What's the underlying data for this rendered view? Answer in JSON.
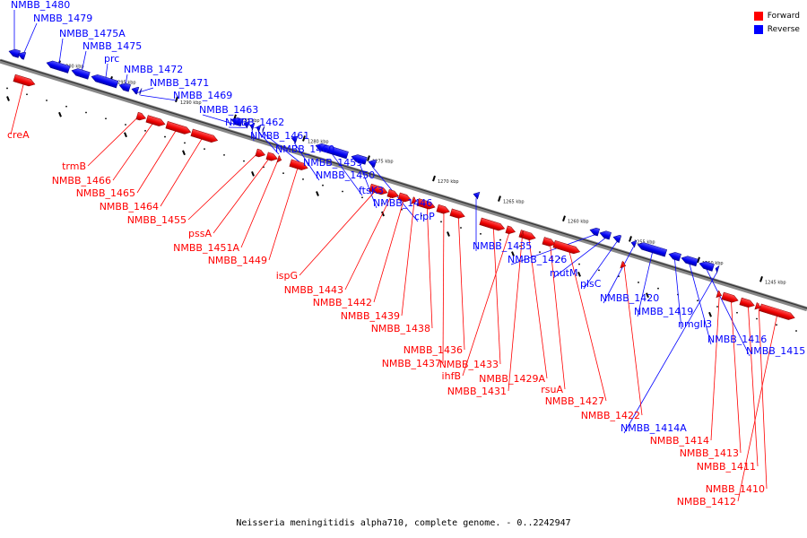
{
  "legend": [
    {
      "label": "Forward",
      "color": "#ff0000"
    },
    {
      "label": "Reverse",
      "color": "#0000ff"
    }
  ],
  "caption": "Neisseria meningitidis alpha710, complete genome. - 0..2242947",
  "ruler_labels": [
    "1300 kbp",
    "1295 kbp",
    "1290 kbp",
    "1285 kbp",
    "1280 kbp",
    "1275 kbp",
    "1270 kbp",
    "1265 kbp",
    "1260 kbp",
    "1255 kbp",
    "1250 kbp",
    "1245 kbp"
  ],
  "genes": [
    {
      "name": "NMBB_1480",
      "strand": "reverse"
    },
    {
      "name": "NMBB_1479",
      "strand": "reverse"
    },
    {
      "name": "NMBB_1475A",
      "strand": "reverse"
    },
    {
      "name": "NMBB_1475",
      "strand": "reverse"
    },
    {
      "name": "prc",
      "strand": "reverse"
    },
    {
      "name": "NMBB_1472",
      "strand": "reverse"
    },
    {
      "name": "NMBB_1471",
      "strand": "reverse"
    },
    {
      "name": "NMBB_1469",
      "strand": "reverse"
    },
    {
      "name": "NMBB_1463",
      "strand": "reverse"
    },
    {
      "name": "NMBB_1462",
      "strand": "reverse"
    },
    {
      "name": "NMBB_1461",
      "strand": "reverse"
    },
    {
      "name": "NMBB_1460",
      "strand": "reverse"
    },
    {
      "name": "NMBB_1459",
      "strand": "reverse"
    },
    {
      "name": "NMBB_1450",
      "strand": "reverse"
    },
    {
      "name": "ftsK3",
      "strand": "reverse"
    },
    {
      "name": "NMBB_1446",
      "strand": "reverse"
    },
    {
      "name": "clpP",
      "strand": "reverse"
    },
    {
      "name": "NMBB_1435",
      "strand": "reverse"
    },
    {
      "name": "NMBB_1426",
      "strand": "reverse"
    },
    {
      "name": "mutM",
      "strand": "reverse"
    },
    {
      "name": "plsC",
      "strand": "reverse"
    },
    {
      "name": "NMBB_1420",
      "strand": "reverse"
    },
    {
      "name": "NMBB_1419",
      "strand": "reverse"
    },
    {
      "name": "nmgII3",
      "strand": "reverse"
    },
    {
      "name": "NMBB_1416",
      "strand": "reverse"
    },
    {
      "name": "NMBB_1415",
      "strand": "reverse"
    },
    {
      "name": "NMBB_1414A",
      "strand": "reverse"
    },
    {
      "name": "creA",
      "strand": "forward"
    },
    {
      "name": "trmB",
      "strand": "forward"
    },
    {
      "name": "NMBB_1466",
      "strand": "forward"
    },
    {
      "name": "NMBB_1465",
      "strand": "forward"
    },
    {
      "name": "NMBB_1464",
      "strand": "forward"
    },
    {
      "name": "NMBB_1455",
      "strand": "forward"
    },
    {
      "name": "pssA",
      "strand": "forward"
    },
    {
      "name": "NMBB_1451A",
      "strand": "forward"
    },
    {
      "name": "NMBB_1449",
      "strand": "forward"
    },
    {
      "name": "ispG",
      "strand": "forward"
    },
    {
      "name": "NMBB_1443",
      "strand": "forward"
    },
    {
      "name": "NMBB_1442",
      "strand": "forward"
    },
    {
      "name": "NMBB_1439",
      "strand": "forward"
    },
    {
      "name": "NMBB_1438",
      "strand": "forward"
    },
    {
      "name": "NMBB_1436",
      "strand": "forward"
    },
    {
      "name": "NMBB_1437",
      "strand": "forward"
    },
    {
      "name": "NMBB_1433",
      "strand": "forward"
    },
    {
      "name": "ihfB",
      "strand": "forward"
    },
    {
      "name": "NMBB_1429A",
      "strand": "forward"
    },
    {
      "name": "NMBB_1431",
      "strand": "forward"
    },
    {
      "name": "rsuA",
      "strand": "forward"
    },
    {
      "name": "NMBB_1427",
      "strand": "forward"
    },
    {
      "name": "NMBB_1422",
      "strand": "forward"
    },
    {
      "name": "NMBB_1414",
      "strand": "forward"
    },
    {
      "name": "NMBB_1413",
      "strand": "forward"
    },
    {
      "name": "NMBB_1411",
      "strand": "forward"
    },
    {
      "name": "NMBB_1410",
      "strand": "forward"
    },
    {
      "name": "NMBB_1412",
      "strand": "forward"
    }
  ]
}
